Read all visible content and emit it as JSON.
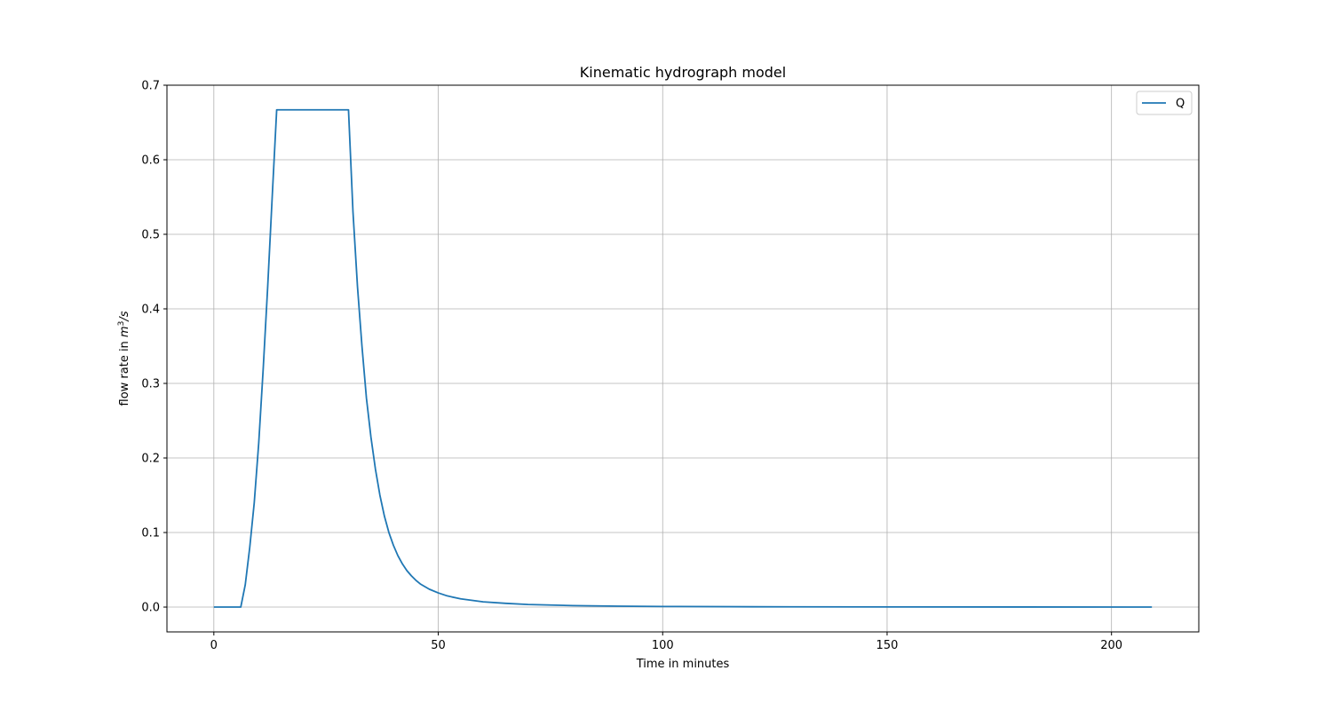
{
  "chart_data": {
    "type": "line",
    "title": "Kinematic hydrograph model",
    "xlabel": "Time in minutes",
    "ylabel_prefix": "flow rate in ",
    "ylabel_unit_base": "m",
    "ylabel_unit_sup": "3",
    "ylabel_unit_suffix": "/s",
    "xlim": [
      -10.45,
      219.45
    ],
    "ylim": [
      -0.0333,
      0.7
    ],
    "xticks": [
      0,
      50,
      100,
      150,
      200
    ],
    "xtick_labels": [
      "0",
      "50",
      "100",
      "150",
      "200"
    ],
    "yticks": [
      0.0,
      0.1,
      0.2,
      0.3,
      0.4,
      0.5,
      0.6,
      0.7
    ],
    "ytick_labels": [
      "0.0",
      "0.1",
      "0.2",
      "0.3",
      "0.4",
      "0.5",
      "0.6",
      "0.7"
    ],
    "grid": true,
    "legend_position": "upper right",
    "series": [
      {
        "name": "Q",
        "color": "#1f77b4",
        "x": [
          0,
          6,
          7,
          8,
          9,
          10,
          11,
          12,
          13,
          14,
          30,
          31,
          32,
          33,
          34,
          35,
          36,
          37,
          38,
          39,
          40,
          41,
          42,
          43,
          44,
          45,
          46,
          48,
          50,
          52,
          55,
          60,
          65,
          70,
          80,
          90,
          100,
          120,
          150,
          180,
          209
        ],
        "y": [
          0,
          0,
          0.03,
          0.08,
          0.14,
          0.22,
          0.32,
          0.43,
          0.55,
          0.667,
          0.667,
          0.53,
          0.43,
          0.35,
          0.28,
          0.228,
          0.185,
          0.15,
          0.122,
          0.1,
          0.083,
          0.069,
          0.058,
          0.049,
          0.042,
          0.036,
          0.031,
          0.024,
          0.019,
          0.015,
          0.011,
          0.007,
          0.005,
          0.0035,
          0.002,
          0.0012,
          0.0008,
          0.0004,
          0.0002,
          0.0001,
          5e-05
        ]
      }
    ]
  }
}
